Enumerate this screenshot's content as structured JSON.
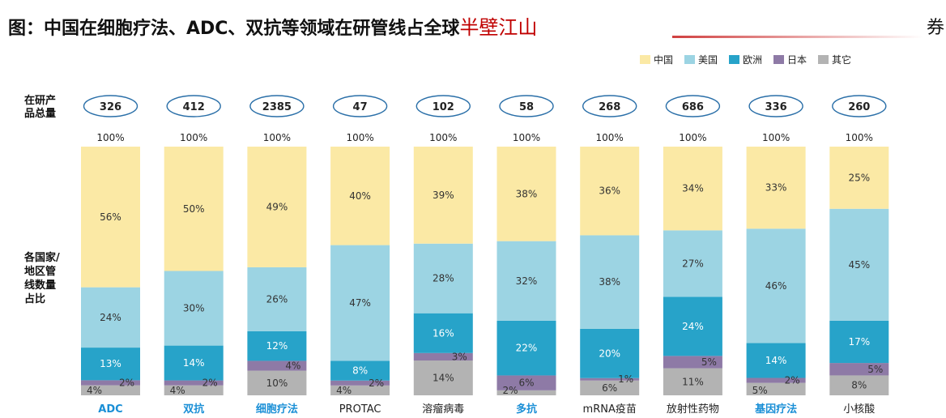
{
  "header": {
    "title": "图：中国在细胞疗法、ADC、双抗等领域在研管线占全球",
    "title_highlight": "半壁江山",
    "title_tail": "券"
  },
  "chart_data": {
    "type": "bar",
    "stacked": true,
    "normalized": true,
    "row_labels": {
      "totals": "在研产品总量",
      "share": "各国家/地区管线数量占比"
    },
    "top_label": "100%",
    "categories": [
      "ADC",
      "双抗",
      "细胞疗法",
      "PROTAC",
      "溶瘤病毒",
      "多抗",
      "mRNA疫苗",
      "放射性药物",
      "基因疗法",
      "小核酸"
    ],
    "category_highlight": [
      true,
      true,
      true,
      false,
      false,
      true,
      false,
      false,
      true,
      false
    ],
    "totals": [
      326,
      412,
      2385,
      47,
      102,
      58,
      268,
      686,
      336,
      260
    ],
    "series": [
      {
        "name": "其它",
        "color": "#b3b3b3",
        "values": [
          4,
          4,
          10,
          4,
          14,
          2,
          6,
          11,
          5,
          8
        ]
      },
      {
        "name": "日本",
        "color": "#8e7aa6",
        "values": [
          2,
          2,
          4,
          2,
          3,
          6,
          1,
          5,
          2,
          5
        ]
      },
      {
        "name": "欧洲",
        "color": "#27a3c9",
        "values": [
          13,
          14,
          12,
          8,
          16,
          22,
          20,
          24,
          14,
          17
        ]
      },
      {
        "name": "美国",
        "color": "#9cd4e3",
        "values": [
          24,
          30,
          26,
          47,
          28,
          32,
          38,
          27,
          46,
          45
        ]
      },
      {
        "name": "中国",
        "color": "#fbe9a5",
        "values": [
          56,
          50,
          49,
          40,
          39,
          38,
          36,
          34,
          33,
          25
        ]
      }
    ],
    "legend_order": [
      "中国",
      "美国",
      "欧洲",
      "日本",
      "其它"
    ],
    "legend_position": "top-right",
    "ylim": [
      0,
      100
    ],
    "grid": false,
    "colors": {
      "highlight_label": "#1a8fd6",
      "normal_label": "#222222",
      "oval_stroke": "#2a6fa8",
      "title_red": "#c00000"
    }
  }
}
